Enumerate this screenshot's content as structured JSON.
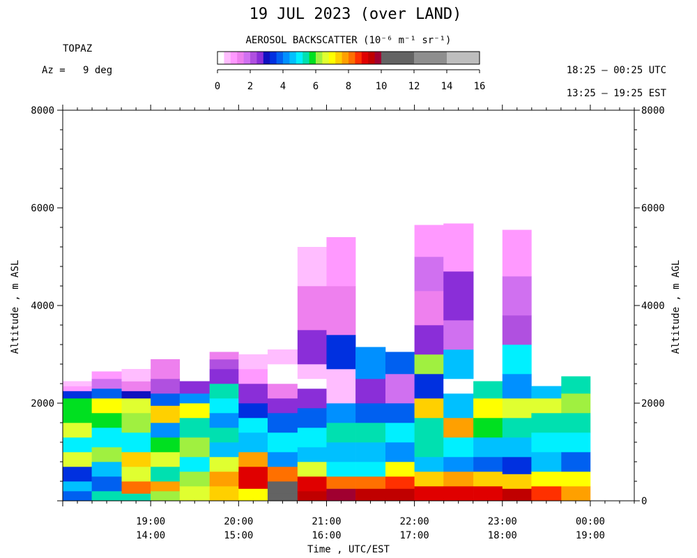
{
  "header": {
    "title": "19 JUL 2023 (over LAND)",
    "instrument": "TOPAZ",
    "azimuth": "Az =   9 deg",
    "utc_range": "18:25 – 00:25 UTC",
    "est_range": "13:25 – 19:25 EST"
  },
  "colorbar": {
    "title": "AEROSOL BACKSCATTER (10⁻⁶ m⁻¹ sr⁻¹)",
    "ticks": [
      0,
      2,
      4,
      6,
      8,
      10,
      12,
      14,
      16
    ],
    "colors": [
      "#ffffff",
      "#ffbdff",
      "#ff99ff",
      "#ee80ee",
      "#d070f0",
      "#b050e0",
      "#8a2ed8",
      "#1010c0",
      "#0030e0",
      "#0060f0",
      "#0090ff",
      "#00c0ff",
      "#00f0ff",
      "#00e0b0",
      "#00e020",
      "#a0f040",
      "#e0ff30",
      "#ffff00",
      "#ffd000",
      "#ffa000",
      "#ff7000",
      "#ff3000",
      "#e00000",
      "#c00000",
      "#a00030"
    ],
    "gray_bins": [
      {
        "from": 10,
        "to": 12,
        "color": "#636363"
      },
      {
        "from": 12,
        "to": 14,
        "color": "#8e8e8e"
      },
      {
        "from": 14,
        "to": 16,
        "color": "#bebebe"
      }
    ]
  },
  "chart_data": {
    "type": "heatmap",
    "title": "19 JUL 2023 (over LAND)",
    "xlabel": "Time , UTC/EST",
    "ylabel_left": "Altitude , m ASL",
    "ylabel_right": "Altitude , m AGL",
    "ylim": [
      0,
      8000
    ],
    "xlim_utc_hours": [
      18.0,
      24.5
    ],
    "y_ticks_left": [
      2000,
      4000,
      6000,
      8000
    ],
    "y_ticks_right": [
      0,
      2000,
      4000,
      6000,
      8000
    ],
    "x_ticks": [
      {
        "utc": "19:00",
        "est": "14:00",
        "h": 19
      },
      {
        "utc": "20:00",
        "est": "15:00",
        "h": 20
      },
      {
        "utc": "21:00",
        "est": "16:00",
        "h": 21
      },
      {
        "utc": "22:00",
        "est": "17:00",
        "h": 22
      },
      {
        "utc": "23:00",
        "est": "18:00",
        "h": 23
      },
      {
        "utc": "00:00",
        "est": "19:00",
        "h": 24
      }
    ],
    "profiles": [
      {
        "start": 18.0,
        "end": 18.33,
        "top": 2450,
        "layers": [
          [
            0,
            200,
            3.6
          ],
          [
            200,
            400,
            4.4
          ],
          [
            400,
            700,
            3.2
          ],
          [
            700,
            1000,
            6.6
          ],
          [
            1000,
            1300,
            4.8
          ],
          [
            1300,
            1600,
            6.4
          ],
          [
            1600,
            2100,
            5.8
          ],
          [
            2100,
            2250,
            3.4
          ],
          [
            2250,
            2350,
            0.8
          ],
          [
            2350,
            2450,
            0.4
          ]
        ]
      },
      {
        "start": 18.33,
        "end": 18.67,
        "top": 2650,
        "layers": [
          [
            0,
            200,
            5.6
          ],
          [
            200,
            500,
            3.8
          ],
          [
            500,
            800,
            4.4
          ],
          [
            800,
            1100,
            6.2
          ],
          [
            1100,
            1500,
            4.8
          ],
          [
            1500,
            1800,
            5.8
          ],
          [
            1800,
            2100,
            6.8
          ],
          [
            2100,
            2300,
            3.6
          ],
          [
            2300,
            2500,
            1.6
          ],
          [
            2500,
            2650,
            0.8
          ]
        ]
      },
      {
        "start": 18.67,
        "end": 19.0,
        "top": 2700,
        "layers": [
          [
            0,
            150,
            5.4
          ],
          [
            150,
            400,
            8.0
          ],
          [
            400,
            700,
            6.6
          ],
          [
            700,
            1000,
            7.4
          ],
          [
            1000,
            1400,
            4.8
          ],
          [
            1400,
            1800,
            6.2
          ],
          [
            1800,
            2100,
            6.6
          ],
          [
            2100,
            2250,
            3.0
          ],
          [
            2250,
            2450,
            1.4
          ],
          [
            2450,
            2700,
            0.6
          ]
        ]
      },
      {
        "start": 19.0,
        "end": 19.33,
        "top": 2900,
        "layers": [
          [
            0,
            200,
            6.2
          ],
          [
            200,
            400,
            7.8
          ],
          [
            400,
            700,
            5.2
          ],
          [
            700,
            1000,
            6.4
          ],
          [
            1000,
            1300,
            5.8
          ],
          [
            1300,
            1600,
            4.2
          ],
          [
            1600,
            1950,
            7.2
          ],
          [
            1950,
            2200,
            3.6
          ],
          [
            2200,
            2500,
            2.2
          ],
          [
            2500,
            2900,
            1.4
          ]
        ]
      },
      {
        "start": 19.33,
        "end": 19.67,
        "top": 2450,
        "layers": [
          [
            0,
            300,
            6.6
          ],
          [
            300,
            600,
            6.0
          ],
          [
            600,
            900,
            4.8
          ],
          [
            900,
            1300,
            6.2
          ],
          [
            1300,
            1700,
            5.4
          ],
          [
            1700,
            2000,
            6.8
          ],
          [
            2000,
            2200,
            4.2
          ],
          [
            2200,
            2450,
            2.6
          ]
        ]
      },
      {
        "start": 19.67,
        "end": 20.0,
        "top": 3050,
        "layers": [
          [
            0,
            300,
            7.2
          ],
          [
            300,
            600,
            7.8
          ],
          [
            600,
            900,
            6.6
          ],
          [
            900,
            1200,
            4.4
          ],
          [
            1200,
            1500,
            5.6
          ],
          [
            1500,
            1800,
            4.0
          ],
          [
            1800,
            2100,
            4.8
          ],
          [
            2100,
            2400,
            5.4
          ],
          [
            2400,
            2700,
            2.8
          ],
          [
            2700,
            2900,
            2.0
          ],
          [
            2900,
            3050,
            1.2
          ]
        ]
      },
      {
        "start": 20.0,
        "end": 20.33,
        "top": 3000,
        "layers": [
          [
            0,
            250,
            7.0
          ],
          [
            250,
            450,
            8.8
          ],
          [
            450,
            700,
            9.0
          ],
          [
            700,
            1000,
            7.6
          ],
          [
            1000,
            1400,
            4.4
          ],
          [
            1400,
            1700,
            5.0
          ],
          [
            1700,
            2000,
            3.2
          ],
          [
            2000,
            2400,
            2.6
          ],
          [
            2400,
            2700,
            1.0
          ],
          [
            2700,
            3000,
            0.6
          ]
        ]
      },
      {
        "start": 20.33,
        "end": 20.67,
        "top": 3100,
        "layers": [
          [
            0,
            150,
            10.0
          ],
          [
            150,
            400,
            11.0
          ],
          [
            400,
            700,
            8.2
          ],
          [
            700,
            1000,
            4.0
          ],
          [
            1000,
            1400,
            4.8
          ],
          [
            1400,
            1800,
            3.6
          ],
          [
            1800,
            2100,
            2.8
          ],
          [
            2100,
            2400,
            1.4
          ],
          [
            2400,
            2800,
            0.0
          ],
          [
            2800,
            3100,
            0.6
          ]
        ]
      },
      {
        "start": 20.67,
        "end": 21.0,
        "top": 5200,
        "layers": [
          [
            0,
            200,
            9.4
          ],
          [
            200,
            500,
            9.0
          ],
          [
            500,
            800,
            6.4
          ],
          [
            800,
            1100,
            4.4
          ],
          [
            1100,
            1500,
            5.0
          ],
          [
            1500,
            1900,
            3.8
          ],
          [
            1900,
            2300,
            2.6
          ],
          [
            2300,
            2500,
            0.0
          ],
          [
            2500,
            2800,
            0.6
          ],
          [
            2800,
            3500,
            2.4
          ],
          [
            3500,
            4400,
            1.2
          ],
          [
            4400,
            5200,
            0.6
          ]
        ]
      },
      {
        "start": 21.0,
        "end": 21.33,
        "top": 5400,
        "layers": [
          [
            0,
            250,
            9.6
          ],
          [
            250,
            500,
            8.0
          ],
          [
            500,
            800,
            5.0
          ],
          [
            800,
            1200,
            4.6
          ],
          [
            1200,
            1600,
            5.6
          ],
          [
            1600,
            2000,
            4.2
          ],
          [
            2000,
            2700,
            0.6
          ],
          [
            2700,
            3400,
            3.4
          ],
          [
            3400,
            4400,
            1.4
          ],
          [
            4400,
            5400,
            1.0
          ]
        ]
      },
      {
        "start": 21.33,
        "end": 21.67,
        "top": 3150,
        "layers": [
          [
            0,
            250,
            9.2
          ],
          [
            250,
            500,
            8.0
          ],
          [
            500,
            800,
            5.0
          ],
          [
            800,
            1200,
            4.4
          ],
          [
            1200,
            1600,
            5.2
          ],
          [
            1600,
            2000,
            3.6
          ],
          [
            2000,
            2500,
            2.6
          ],
          [
            2500,
            3150,
            4.0
          ]
        ]
      },
      {
        "start": 21.67,
        "end": 22.0,
        "top": 3050,
        "layers": [
          [
            0,
            250,
            9.4
          ],
          [
            250,
            500,
            8.4
          ],
          [
            500,
            800,
            7.0
          ],
          [
            800,
            1200,
            4.2
          ],
          [
            1200,
            1600,
            5.0
          ],
          [
            1600,
            2000,
            3.8
          ],
          [
            2000,
            2600,
            1.8
          ],
          [
            2600,
            3050,
            3.8
          ]
        ]
      },
      {
        "start": 22.0,
        "end": 22.33,
        "top": 5650,
        "layers": [
          [
            0,
            300,
            8.8
          ],
          [
            300,
            600,
            7.4
          ],
          [
            600,
            900,
            4.6
          ],
          [
            900,
            1300,
            5.2
          ],
          [
            1300,
            1700,
            5.6
          ],
          [
            1700,
            2100,
            7.4
          ],
          [
            2100,
            2600,
            3.2
          ],
          [
            2600,
            3000,
            6.0
          ],
          [
            3000,
            3600,
            2.6
          ],
          [
            3600,
            4300,
            1.4
          ],
          [
            4300,
            5000,
            1.6
          ],
          [
            5000,
            5650,
            0.8
          ]
        ]
      },
      {
        "start": 22.33,
        "end": 22.67,
        "top": 5680,
        "layers": [
          [
            0,
            300,
            9.0
          ],
          [
            300,
            600,
            7.6
          ],
          [
            600,
            900,
            4.2
          ],
          [
            900,
            1300,
            5.0
          ],
          [
            1300,
            1700,
            7.6
          ],
          [
            1700,
            2200,
            4.6
          ],
          [
            2200,
            2500,
            0.0
          ],
          [
            2500,
            3100,
            4.4
          ],
          [
            3100,
            3700,
            1.8
          ],
          [
            3700,
            4700,
            2.4
          ],
          [
            4700,
            5680,
            1.0
          ]
        ]
      },
      {
        "start": 22.67,
        "end": 23.0,
        "top": 2450,
        "layers": [
          [
            0,
            300,
            9.0
          ],
          [
            300,
            600,
            7.2
          ],
          [
            600,
            900,
            3.8
          ],
          [
            900,
            1300,
            4.6
          ],
          [
            1300,
            1700,
            5.8
          ],
          [
            1700,
            2100,
            6.8
          ],
          [
            2100,
            2450,
            5.4
          ]
        ]
      },
      {
        "start": 23.0,
        "end": 23.33,
        "top": 5550,
        "layers": [
          [
            0,
            250,
            9.2
          ],
          [
            250,
            550,
            7.2
          ],
          [
            550,
            900,
            3.4
          ],
          [
            900,
            1300,
            4.6
          ],
          [
            1300,
            1700,
            5.6
          ],
          [
            1700,
            2100,
            6.6
          ],
          [
            2100,
            2600,
            4.0
          ],
          [
            2600,
            3200,
            5.0
          ],
          [
            3200,
            3800,
            2.2
          ],
          [
            3800,
            4600,
            1.6
          ],
          [
            4600,
            5550,
            1.0
          ]
        ]
      },
      {
        "start": 23.33,
        "end": 23.67,
        "top": 2350,
        "layers": [
          [
            0,
            300,
            8.4
          ],
          [
            300,
            600,
            7.0
          ],
          [
            600,
            1000,
            4.4
          ],
          [
            1000,
            1400,
            4.8
          ],
          [
            1400,
            1800,
            5.6
          ],
          [
            1800,
            2100,
            6.4
          ],
          [
            2100,
            2350,
            4.6
          ]
        ]
      },
      {
        "start": 23.67,
        "end": 24.0,
        "top": 2550,
        "layers": [
          [
            0,
            300,
            7.6
          ],
          [
            300,
            600,
            6.8
          ],
          [
            600,
            1000,
            3.8
          ],
          [
            1000,
            1400,
            4.8
          ],
          [
            1400,
            1800,
            5.2
          ],
          [
            1800,
            2200,
            6.2
          ],
          [
            2200,
            2550,
            5.6
          ]
        ]
      }
    ]
  }
}
